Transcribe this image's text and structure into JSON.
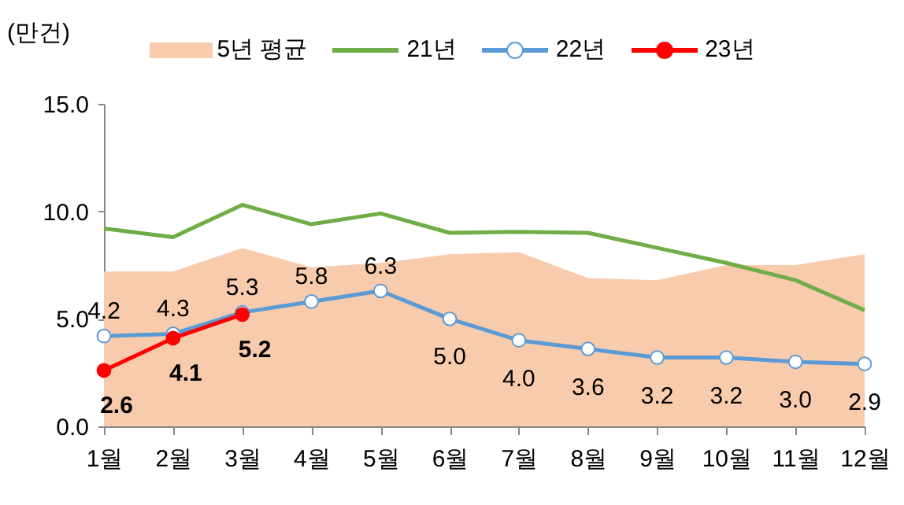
{
  "chart_data": {
    "type": "line",
    "ylabel": "(만건)",
    "categories": [
      "1월",
      "2월",
      "3월",
      "4월",
      "5월",
      "6월",
      "7월",
      "8월",
      "9월",
      "10월",
      "11월",
      "12월"
    ],
    "ylim": [
      0,
      15
    ],
    "yticks": [
      {
        "value": 0,
        "label": "0.0"
      },
      {
        "value": 5,
        "label": "5.0"
      },
      {
        "value": 10,
        "label": "10.0"
      },
      {
        "value": 15,
        "label": "15.0"
      }
    ],
    "grid": false,
    "legend": "top",
    "series": [
      {
        "name": "5년 평균",
        "type": "area",
        "color": "#f8cbad",
        "values": [
          7.2,
          7.2,
          8.3,
          7.4,
          7.6,
          8.0,
          8.1,
          6.9,
          6.8,
          7.5,
          7.5,
          8.0
        ]
      },
      {
        "name": "21년",
        "type": "line",
        "color": "#70ad47",
        "marker": "none",
        "values": [
          9.2,
          8.8,
          10.3,
          9.4,
          9.9,
          9.0,
          9.05,
          9.0,
          8.3,
          7.6,
          6.8,
          5.4
        ]
      },
      {
        "name": "22년",
        "type": "line",
        "color": "#5b9bd5",
        "marker": "circle",
        "values": [
          4.2,
          4.3,
          5.3,
          5.8,
          6.3,
          5.0,
          4.0,
          3.6,
          3.2,
          3.2,
          3.0,
          2.9
        ],
        "value_labels": [
          "4.2",
          "4.3",
          "5.3",
          "5.8",
          "6.3",
          "5.0",
          "4.0",
          "3.6",
          "3.2",
          "3.2",
          "3.0",
          "2.9"
        ]
      },
      {
        "name": "23년",
        "type": "line",
        "color": "#ff0000",
        "marker": "circle",
        "values": [
          2.6,
          4.1,
          5.2,
          null,
          null,
          null,
          null,
          null,
          null,
          null,
          null,
          null
        ],
        "value_labels": [
          "2.6",
          "4.1",
          "5.2",
          null,
          null,
          null,
          null,
          null,
          null,
          null,
          null,
          null
        ]
      }
    ]
  }
}
